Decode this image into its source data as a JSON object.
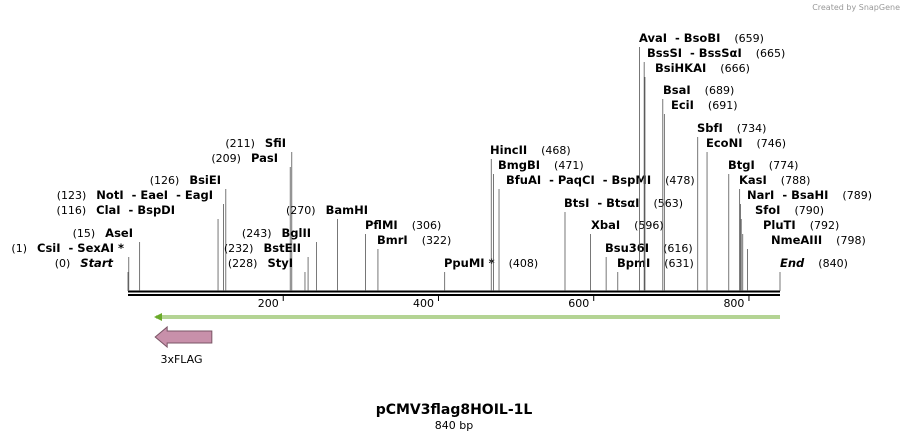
{
  "credit": "Created by SnapGene",
  "map": {
    "title": "pCMV3flag8HOIL-1L",
    "length": 840,
    "length_label": "840 bp",
    "ruler_ticks": [
      200,
      400,
      600,
      800
    ],
    "features": [
      {
        "name": "3xFLAG",
        "start": 35,
        "end": 108,
        "direction": "left",
        "color": "#c890aa"
      }
    ],
    "orf_color": "#6aaa2a",
    "sites": [
      {
        "name": "Start",
        "position": 0,
        "position_label": "(0)",
        "side": "left"
      },
      {
        "name": "CsiI  - SexAI *",
        "position": 1,
        "position_label": "(1)",
        "side": "left"
      },
      {
        "name": "AseI",
        "position": 15,
        "position_label": "(15)",
        "side": "left"
      },
      {
        "name": "ClaI  - BspDI",
        "position": 116,
        "position_label": "(116)",
        "side": "left"
      },
      {
        "name": "NotI  - EaeI  - EagI",
        "position": 123,
        "position_label": "(123)",
        "side": "left"
      },
      {
        "name": "BsiEI",
        "position": 126,
        "position_label": "(126)",
        "side": "left"
      },
      {
        "name": "PasI",
        "position": 209,
        "position_label": "(209)",
        "side": "left"
      },
      {
        "name": "SfiI",
        "position": 211,
        "position_label": "(211)",
        "side": "left"
      },
      {
        "name": "StyI",
        "position": 228,
        "position_label": "(228)",
        "side": "left"
      },
      {
        "name": "BstEII",
        "position": 232,
        "position_label": "(232)",
        "side": "left"
      },
      {
        "name": "BglII",
        "position": 243,
        "position_label": "(243)",
        "side": "left"
      },
      {
        "name": "BamHI",
        "position": 270,
        "position_label": "(270)",
        "side": "left"
      },
      {
        "name": "PflMI",
        "position": 306,
        "position_label": "(306)",
        "side": "right"
      },
      {
        "name": "BmrI",
        "position": 322,
        "position_label": "(322)",
        "side": "right"
      },
      {
        "name": "PpuMI *",
        "position": 408,
        "position_label": "(408)",
        "side": "right"
      },
      {
        "name": "HincII",
        "position": 468,
        "position_label": "(468)",
        "side": "right"
      },
      {
        "name": "BmgBI",
        "position": 471,
        "position_label": "(471)",
        "side": "right"
      },
      {
        "name": "BfuAI  - PaqCI  - BspMI",
        "position": 478,
        "position_label": "(478)",
        "side": "right"
      },
      {
        "name": "BtsI  - BtsαI",
        "position": 563,
        "position_label": "(563)",
        "side": "right"
      },
      {
        "name": "XbaI",
        "position": 596,
        "position_label": "(596)",
        "side": "right"
      },
      {
        "name": "Bsu36I",
        "position": 616,
        "position_label": "(616)",
        "side": "right"
      },
      {
        "name": "BpmI",
        "position": 631,
        "position_label": "(631)",
        "side": "right"
      },
      {
        "name": "AvaI  - BsoBI",
        "position": 659,
        "position_label": "(659)",
        "side": "right"
      },
      {
        "name": "BssSI  - BssSαI",
        "position": 665,
        "position_label": "(665)",
        "side": "right"
      },
      {
        "name": "BsiHKAI",
        "position": 666,
        "position_label": "(666)",
        "side": "right"
      },
      {
        "name": "BsaI",
        "position": 689,
        "position_label": "(689)",
        "side": "right"
      },
      {
        "name": "EciI",
        "position": 691,
        "position_label": "(691)",
        "side": "right"
      },
      {
        "name": "SbfI",
        "position": 734,
        "position_label": "(734)",
        "side": "right"
      },
      {
        "name": "EcoNI",
        "position": 746,
        "position_label": "(746)",
        "side": "right"
      },
      {
        "name": "BtgI",
        "position": 774,
        "position_label": "(774)",
        "side": "right"
      },
      {
        "name": "KasI",
        "position": 788,
        "position_label": "(788)",
        "side": "right"
      },
      {
        "name": "NarI  - BsaHI",
        "position": 789,
        "position_label": "(789)",
        "side": "right"
      },
      {
        "name": "SfoI",
        "position": 790,
        "position_label": "(790)",
        "side": "right"
      },
      {
        "name": "PluTI",
        "position": 792,
        "position_label": "(792)",
        "side": "right"
      },
      {
        "name": "NmeAIII",
        "position": 798,
        "position_label": "(798)",
        "side": "right"
      },
      {
        "name": "End",
        "position": 840,
        "position_label": "(840)",
        "side": "right"
      }
    ]
  }
}
